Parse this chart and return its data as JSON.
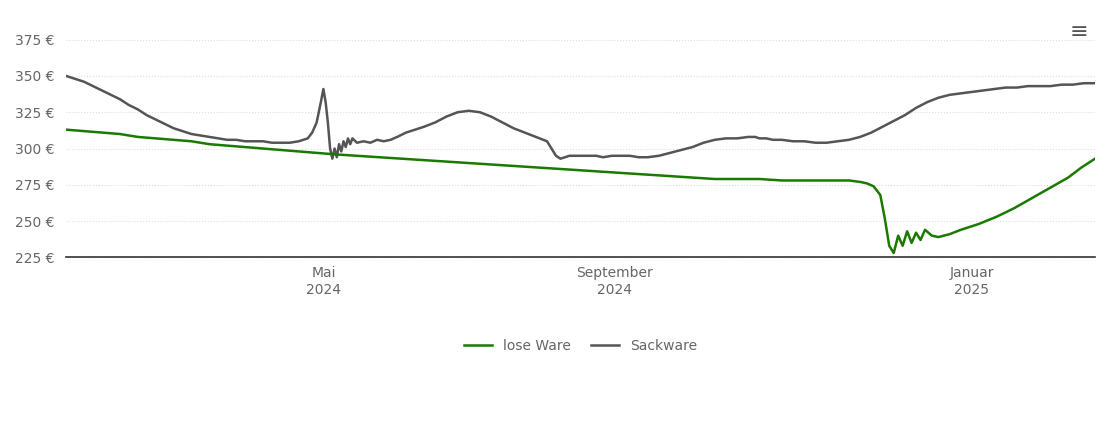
{
  "background_color": "#ffffff",
  "grid_color": "#dddddd",
  "yticks": [
    225,
    250,
    275,
    300,
    325,
    350,
    375
  ],
  "ylim": [
    216,
    392
  ],
  "line_lose_ware_color": "#1a7a00",
  "line_sackware_color": "#555555",
  "line_width": 1.8,
  "legend_lose": "lose Ware",
  "legend_sack": "Sackware",
  "xtick_positions": [
    115,
    245,
    405
  ],
  "x_tick_labels": [
    "Mai\n2024",
    "September\n2024",
    "Januar\n2025"
  ],
  "xlim": [
    0,
    460
  ],
  "lose_ware": [
    [
      0,
      313
    ],
    [
      8,
      312
    ],
    [
      16,
      311
    ],
    [
      24,
      310
    ],
    [
      32,
      308
    ],
    [
      40,
      307
    ],
    [
      48,
      306
    ],
    [
      56,
      305
    ],
    [
      64,
      303
    ],
    [
      72,
      302
    ],
    [
      80,
      301
    ],
    [
      88,
      300
    ],
    [
      96,
      299
    ],
    [
      104,
      298
    ],
    [
      112,
      297
    ],
    [
      120,
      296
    ],
    [
      130,
      295
    ],
    [
      140,
      294
    ],
    [
      150,
      293
    ],
    [
      160,
      292
    ],
    [
      170,
      291
    ],
    [
      180,
      290
    ],
    [
      190,
      289
    ],
    [
      200,
      288
    ],
    [
      210,
      287
    ],
    [
      220,
      286
    ],
    [
      230,
      285
    ],
    [
      240,
      284
    ],
    [
      250,
      283
    ],
    [
      260,
      282
    ],
    [
      270,
      281
    ],
    [
      280,
      280
    ],
    [
      290,
      279
    ],
    [
      300,
      279
    ],
    [
      310,
      279
    ],
    [
      320,
      278
    ],
    [
      330,
      278
    ],
    [
      340,
      278
    ],
    [
      350,
      278
    ],
    [
      355,
      277
    ],
    [
      358,
      276
    ],
    [
      361,
      274
    ],
    [
      364,
      268
    ],
    [
      366,
      252
    ],
    [
      368,
      233
    ],
    [
      370,
      228
    ],
    [
      372,
      240
    ],
    [
      374,
      233
    ],
    [
      376,
      243
    ],
    [
      378,
      235
    ],
    [
      380,
      242
    ],
    [
      382,
      237
    ],
    [
      384,
      244
    ],
    [
      387,
      240
    ],
    [
      390,
      239
    ],
    [
      395,
      241
    ],
    [
      400,
      244
    ],
    [
      408,
      248
    ],
    [
      416,
      253
    ],
    [
      424,
      259
    ],
    [
      432,
      266
    ],
    [
      440,
      273
    ],
    [
      448,
      280
    ],
    [
      454,
      287
    ],
    [
      460,
      293
    ]
  ],
  "sackware": [
    [
      0,
      350
    ],
    [
      4,
      348
    ],
    [
      8,
      346
    ],
    [
      12,
      343
    ],
    [
      16,
      340
    ],
    [
      20,
      337
    ],
    [
      24,
      334
    ],
    [
      28,
      330
    ],
    [
      32,
      327
    ],
    [
      36,
      323
    ],
    [
      40,
      320
    ],
    [
      44,
      317
    ],
    [
      48,
      314
    ],
    [
      52,
      312
    ],
    [
      56,
      310
    ],
    [
      60,
      309
    ],
    [
      64,
      308
    ],
    [
      68,
      307
    ],
    [
      72,
      306
    ],
    [
      76,
      306
    ],
    [
      80,
      305
    ],
    [
      84,
      305
    ],
    [
      88,
      305
    ],
    [
      92,
      304
    ],
    [
      96,
      304
    ],
    [
      100,
      304
    ],
    [
      104,
      305
    ],
    [
      108,
      307
    ],
    [
      110,
      311
    ],
    [
      112,
      318
    ],
    [
      114,
      333
    ],
    [
      115,
      341
    ],
    [
      116,
      332
    ],
    [
      117,
      318
    ],
    [
      118,
      300
    ],
    [
      119,
      293
    ],
    [
      120,
      300
    ],
    [
      121,
      294
    ],
    [
      122,
      303
    ],
    [
      123,
      298
    ],
    [
      124,
      305
    ],
    [
      125,
      301
    ],
    [
      126,
      307
    ],
    [
      127,
      303
    ],
    [
      128,
      307
    ],
    [
      130,
      304
    ],
    [
      133,
      305
    ],
    [
      136,
      304
    ],
    [
      139,
      306
    ],
    [
      142,
      305
    ],
    [
      145,
      306
    ],
    [
      148,
      308
    ],
    [
      152,
      311
    ],
    [
      156,
      313
    ],
    [
      160,
      315
    ],
    [
      165,
      318
    ],
    [
      170,
      322
    ],
    [
      175,
      325
    ],
    [
      180,
      326
    ],
    [
      185,
      325
    ],
    [
      190,
      322
    ],
    [
      195,
      318
    ],
    [
      200,
      314
    ],
    [
      205,
      311
    ],
    [
      210,
      308
    ],
    [
      215,
      305
    ],
    [
      217,
      300
    ],
    [
      219,
      295
    ],
    [
      221,
      293
    ],
    [
      223,
      294
    ],
    [
      225,
      295
    ],
    [
      228,
      295
    ],
    [
      232,
      295
    ],
    [
      237,
      295
    ],
    [
      240,
      294
    ],
    [
      244,
      295
    ],
    [
      248,
      295
    ],
    [
      252,
      295
    ],
    [
      256,
      294
    ],
    [
      260,
      294
    ],
    [
      265,
      295
    ],
    [
      270,
      297
    ],
    [
      275,
      299
    ],
    [
      280,
      301
    ],
    [
      285,
      304
    ],
    [
      290,
      306
    ],
    [
      295,
      307
    ],
    [
      300,
      307
    ],
    [
      305,
      308
    ],
    [
      308,
      308
    ],
    [
      310,
      307
    ],
    [
      313,
      307
    ],
    [
      316,
      306
    ],
    [
      320,
      306
    ],
    [
      325,
      305
    ],
    [
      330,
      305
    ],
    [
      335,
      304
    ],
    [
      340,
      304
    ],
    [
      345,
      305
    ],
    [
      350,
      306
    ],
    [
      355,
      308
    ],
    [
      360,
      311
    ],
    [
      365,
      315
    ],
    [
      370,
      319
    ],
    [
      375,
      323
    ],
    [
      380,
      328
    ],
    [
      385,
      332
    ],
    [
      390,
      335
    ],
    [
      395,
      337
    ],
    [
      400,
      338
    ],
    [
      405,
      339
    ],
    [
      410,
      340
    ],
    [
      415,
      341
    ],
    [
      420,
      342
    ],
    [
      425,
      342
    ],
    [
      430,
      343
    ],
    [
      435,
      343
    ],
    [
      440,
      343
    ],
    [
      445,
      344
    ],
    [
      450,
      344
    ],
    [
      455,
      345
    ],
    [
      460,
      345
    ]
  ]
}
